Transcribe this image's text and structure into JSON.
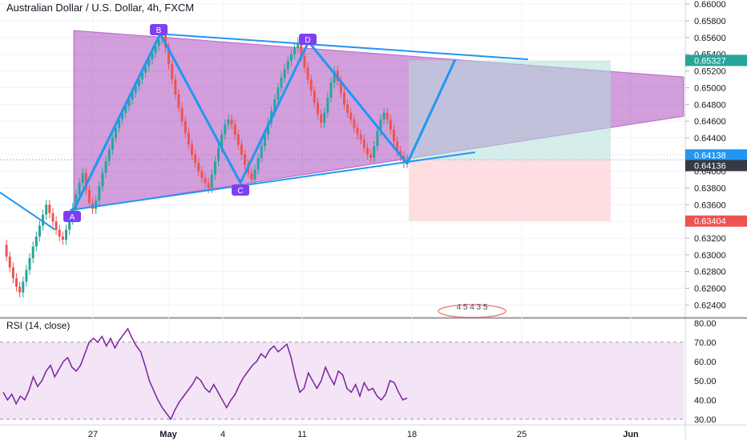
{
  "header": {
    "symbol_title": "Australian Dollar / U.S. Dollar, 4h, FXCM"
  },
  "rsi_panel": {
    "title": "RSI (14, close)"
  },
  "colors": {
    "bull": "#26a69a",
    "bear": "#ef5350",
    "triangle_fill": "#9c27b0",
    "pattern_line": "#2196f3",
    "pattern_label_bg": "#7e3ff2",
    "target_zone": "#b2dfdb",
    "stop_zone": "#ffcdd2",
    "rsi_line": "#7b1fa2",
    "rsi_band": "#f3e5f5",
    "badge_target": "#26a69a",
    "badge_stop": "#ef5350",
    "badge_last": "#363a45"
  },
  "chart_data": [
    {
      "type": "line",
      "chart": "price",
      "ylim": [
        0.6225,
        0.6605
      ],
      "y_ticks": [
        "0.66000",
        "0.65800",
        "0.65600",
        "0.65400",
        "0.65200",
        "0.65000",
        "0.64800",
        "0.64600",
        "0.64400",
        "0.64200",
        "0.64000",
        "0.63800",
        "0.63600",
        "0.63400",
        "0.63200",
        "0.63000",
        "0.62800",
        "0.62600",
        "0.62400"
      ],
      "x_ticks": [
        "27",
        "May",
        "4",
        "11",
        "18",
        "25",
        "Jun"
      ],
      "series": [
        {
          "values": [
            0.6312,
            0.6298,
            0.6285,
            0.6272,
            0.6262,
            0.6255,
            0.6268,
            0.6282,
            0.6296,
            0.631,
            0.6322,
            0.6335,
            0.6348,
            0.636,
            0.635,
            0.634,
            0.633,
            0.6322,
            0.6318,
            0.633,
            0.6342,
            0.6356,
            0.6372,
            0.6386,
            0.6398,
            0.6378,
            0.6362,
            0.6355,
            0.6365,
            0.6382,
            0.6398,
            0.6412,
            0.6426,
            0.644,
            0.6452,
            0.6462,
            0.647,
            0.6478,
            0.6486,
            0.6494,
            0.6502,
            0.651,
            0.6518,
            0.6526,
            0.6534,
            0.6542,
            0.655,
            0.6558,
            0.6564,
            0.6548,
            0.6528,
            0.651,
            0.6492,
            0.6476,
            0.646,
            0.6446,
            0.6432,
            0.642,
            0.641,
            0.64,
            0.6392,
            0.6386,
            0.638,
            0.6396,
            0.6412,
            0.6428,
            0.6444,
            0.6456,
            0.6462,
            0.6456,
            0.6444,
            0.6432,
            0.642,
            0.6408,
            0.6398,
            0.639,
            0.6402,
            0.6416,
            0.643,
            0.6444,
            0.6458,
            0.6472,
            0.6486,
            0.65,
            0.6512,
            0.6522,
            0.6532,
            0.654,
            0.6548,
            0.6554,
            0.6538,
            0.6524,
            0.651,
            0.6496,
            0.6482,
            0.6468,
            0.6458,
            0.647,
            0.6488,
            0.6506,
            0.652,
            0.6508,
            0.6494,
            0.648,
            0.647,
            0.6462,
            0.6452,
            0.6444,
            0.6438,
            0.6428,
            0.642,
            0.6416,
            0.643,
            0.6448,
            0.6462,
            0.647,
            0.6462,
            0.645,
            0.6436,
            0.6424,
            0.6418,
            0.641,
            0.6414
          ]
        }
      ],
      "annotations": {
        "pattern_points": [
          "A",
          "B",
          "C",
          "D"
        ],
        "price_levels": {
          "target": 0.65327,
          "entry_a": 0.64138,
          "entry_b": 0.64136,
          "stop": 0.63404
        },
        "watermark": "4 5 4 3 5"
      }
    },
    {
      "type": "line",
      "chart": "rsi",
      "title": "RSI (14, close)",
      "ylim": [
        27,
        82
      ],
      "y_ticks": [
        "80.00",
        "70.00",
        "60.00",
        "50.00",
        "40.00",
        "30.00"
      ],
      "band": [
        30,
        70
      ],
      "series": [
        {
          "values": [
            44,
            40,
            43,
            38,
            42,
            40,
            45,
            52,
            47,
            50,
            55,
            58,
            52,
            56,
            60,
            62,
            57,
            55,
            58,
            64,
            70,
            72,
            70,
            73,
            68,
            72,
            67,
            71,
            74,
            77,
            72,
            68,
            65,
            58,
            50,
            45,
            40,
            36,
            33,
            30,
            35,
            39,
            42,
            45,
            48,
            52,
            50,
            46,
            44,
            48,
            44,
            40,
            36,
            40,
            43,
            48,
            52,
            55,
            58,
            60,
            64,
            62,
            66,
            68,
            65,
            67,
            69,
            62,
            52,
            44,
            46,
            54,
            50,
            46,
            50,
            57,
            52,
            48,
            55,
            53,
            46,
            44,
            48,
            42,
            49,
            45,
            46,
            42,
            40,
            43,
            50,
            49,
            44,
            40,
            41
          ]
        }
      ]
    }
  ]
}
